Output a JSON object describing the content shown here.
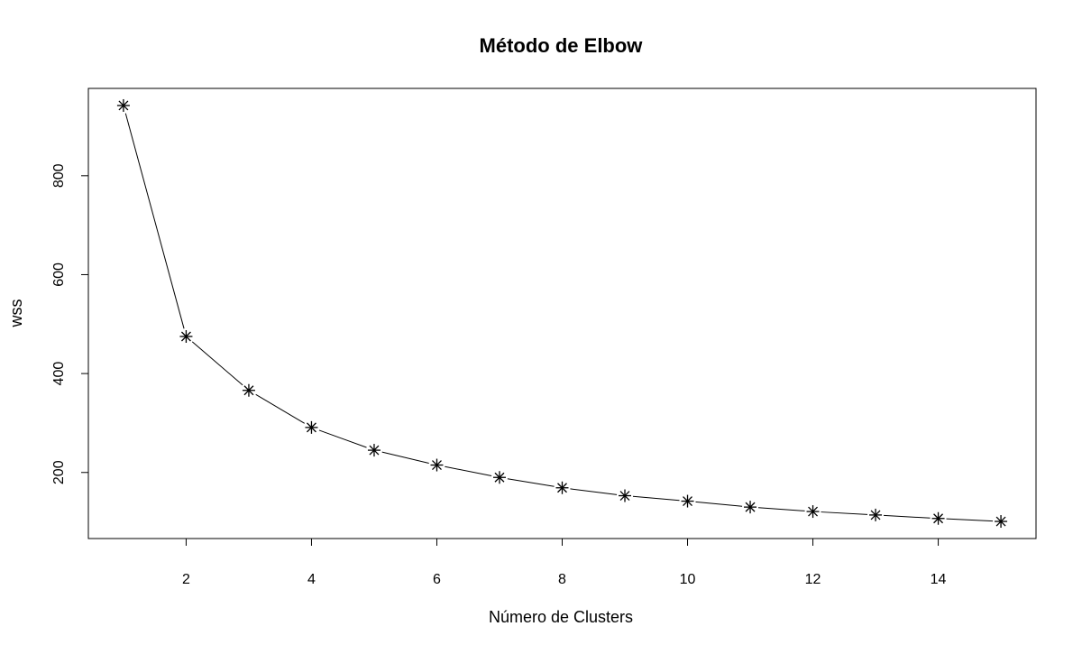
{
  "chart_data": {
    "type": "line",
    "title": "Método de Elbow",
    "xlabel": "Número de Clusters",
    "ylabel": "wss",
    "x": [
      1,
      2,
      3,
      4,
      5,
      6,
      7,
      8,
      9,
      10,
      11,
      12,
      13,
      14,
      15
    ],
    "series": [
      {
        "values": [
          942,
          475,
          366,
          291,
          245,
          215,
          190,
          169,
          153,
          142,
          130,
          121,
          114,
          107,
          101
        ],
        "marker": "asterisk",
        "line": true
      }
    ],
    "xlim": [
      0.44,
      15.56
    ],
    "ylim": [
      66.4,
      976.6
    ],
    "x_ticks": [
      2,
      4,
      6,
      8,
      10,
      12,
      14
    ],
    "y_ticks": [
      200,
      400,
      600,
      800
    ],
    "grid": false,
    "legend": "none",
    "colors": {
      "line": "#000000",
      "marker": "#000000",
      "axis": "#000000",
      "background": "#ffffff"
    }
  }
}
